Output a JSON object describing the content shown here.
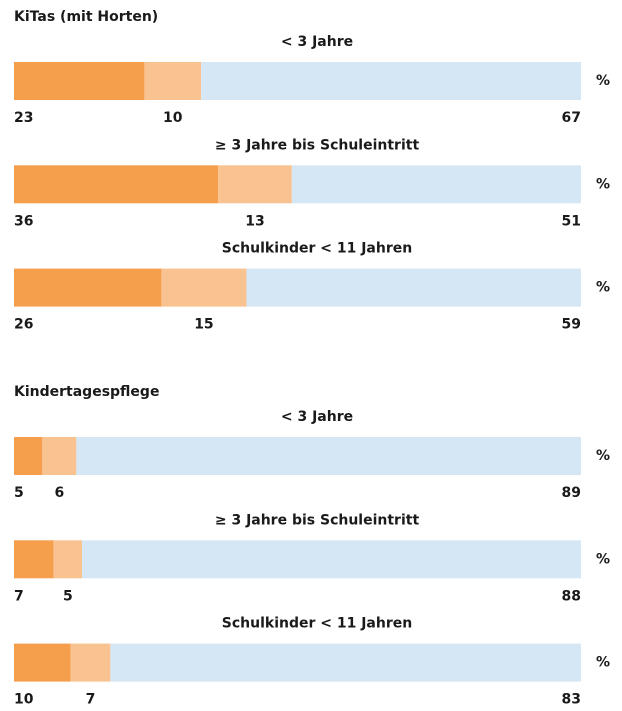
{
  "chart_data": [
    {
      "type": "stacked-bar",
      "title": "KiTas (mit Horten)",
      "unit": "%",
      "categories": [
        "< 3 Jahre",
        "≥ 3 Jahre bis Schuleintritt",
        "Schulkinder < 11 Jahren"
      ],
      "series": [
        {
          "color": "#f59e4c",
          "values": [
            23,
            36,
            26
          ]
        },
        {
          "color": "#f9c391",
          "values": [
            10,
            13,
            15
          ]
        },
        {
          "color": "#d5e7f4",
          "values": [
            67,
            51,
            59
          ]
        }
      ]
    },
    {
      "type": "stacked-bar",
      "title": "Kindertagespflege",
      "unit": "%",
      "categories": [
        "< 3 Jahre",
        "≥ 3 Jahre bis Schuleintritt",
        "Schulkinder < 11 Jahren"
      ],
      "series": [
        {
          "color": "#f59e4c",
          "values": [
            5,
            7,
            10
          ]
        },
        {
          "color": "#f9c391",
          "values": [
            6,
            5,
            7
          ]
        },
        {
          "color": "#d5e7f4",
          "values": [
            89,
            88,
            83
          ]
        }
      ]
    }
  ]
}
